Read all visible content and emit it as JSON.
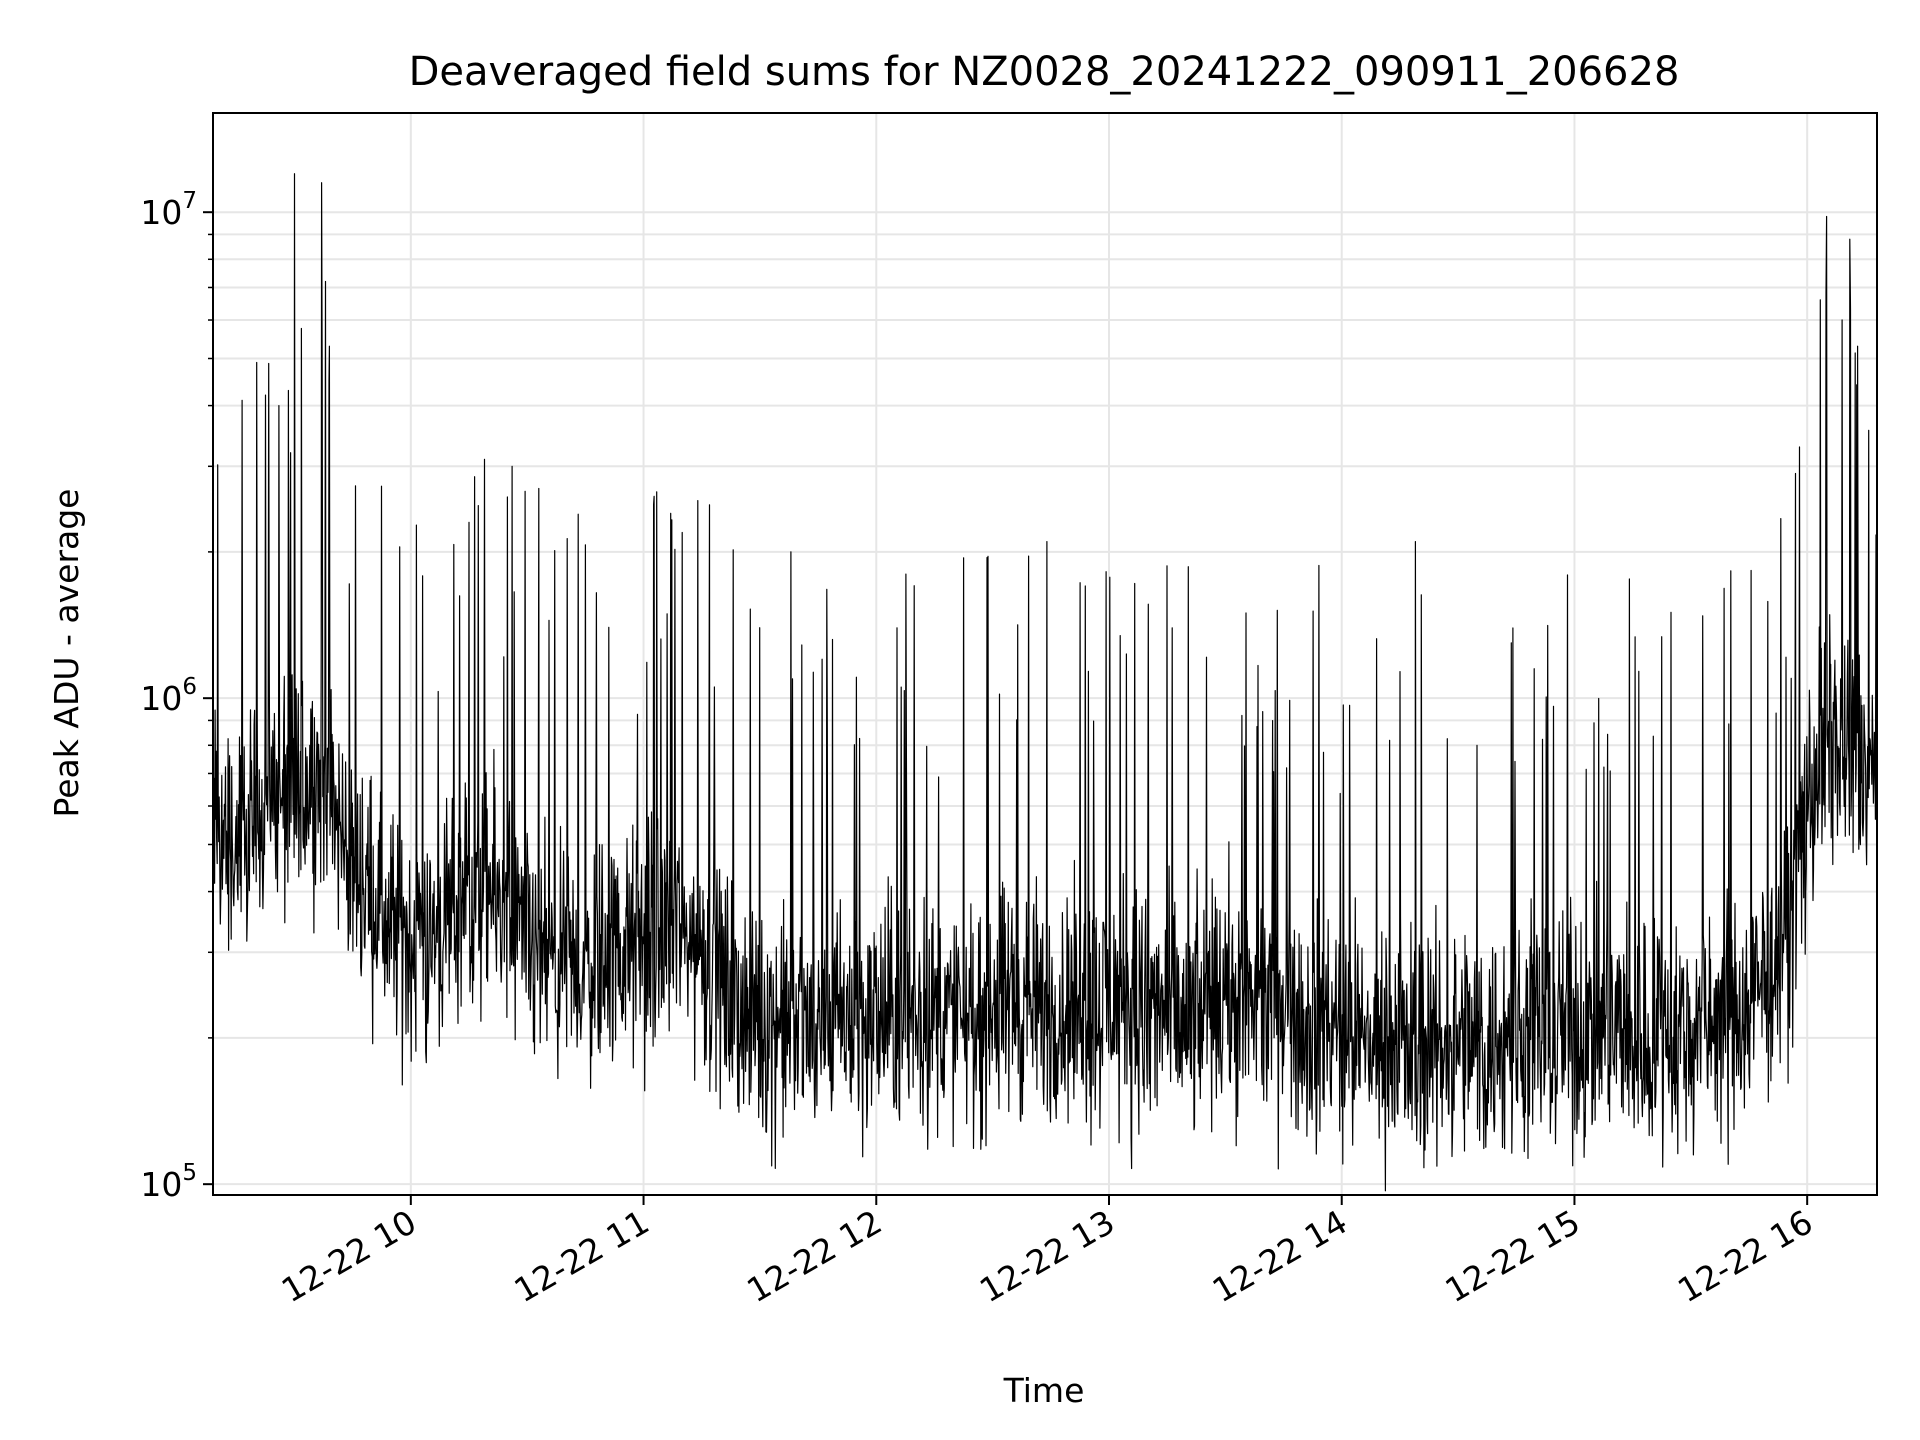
{
  "chart_data": {
    "type": "line",
    "title": "Deaveraged field sums for NZ0028_20241222_090911_206628",
    "xlabel": "Time",
    "ylabel": "Peak ADU - average",
    "y_scale": "log",
    "ylim": [
      95000,
      16000000
    ],
    "xlim": [
      "2024-12-22 09:09",
      "2024-12-22 16:18"
    ],
    "grid": true,
    "line_color": "#000000",
    "grid_color": "#e6e6e6",
    "x_ticks": [
      {
        "value": "2024-12-22 10:00",
        "label": "12-22 10"
      },
      {
        "value": "2024-12-22 11:00",
        "label": "12-22 11"
      },
      {
        "value": "2024-12-22 12:00",
        "label": "12-22 12"
      },
      {
        "value": "2024-12-22 13:00",
        "label": "12-22 13"
      },
      {
        "value": "2024-12-22 14:00",
        "label": "12-22 14"
      },
      {
        "value": "2024-12-22 15:00",
        "label": "12-22 15"
      },
      {
        "value": "2024-12-22 16:00",
        "label": "12-22 16"
      }
    ],
    "y_ticks": [
      {
        "value": 100000,
        "base": "10",
        "exp": "5"
      },
      {
        "value": 1000000,
        "base": "10",
        "exp": "6"
      },
      {
        "value": 10000000,
        "base": "10",
        "exp": "7"
      }
    ],
    "series": [
      {
        "x": [
          "2024-12-22 09:09",
          "2024-12-22 09:12",
          "2024-12-22 09:15",
          "2024-12-22 09:18",
          "2024-12-22 09:21",
          "2024-12-22 09:24",
          "2024-12-22 09:27",
          "2024-12-22 09:30",
          "2024-12-22 09:33",
          "2024-12-22 09:36",
          "2024-12-22 09:39",
          "2024-12-22 09:42",
          "2024-12-22 09:45",
          "2024-12-22 09:48",
          "2024-12-22 09:51",
          "2024-12-22 09:54",
          "2024-12-22 09:57",
          "2024-12-22 10:00",
          "2024-12-22 10:05",
          "2024-12-22 10:10",
          "2024-12-22 10:15",
          "2024-12-22 10:20",
          "2024-12-22 10:25",
          "2024-12-22 10:30",
          "2024-12-22 10:35",
          "2024-12-22 10:40",
          "2024-12-22 10:45",
          "2024-12-22 10:50",
          "2024-12-22 10:55",
          "2024-12-22 11:00",
          "2024-12-22 11:05",
          "2024-12-22 11:10",
          "2024-12-22 11:15",
          "2024-12-22 11:20",
          "2024-12-22 11:25",
          "2024-12-22 11:30",
          "2024-12-22 11:35",
          "2024-12-22 11:40",
          "2024-12-22 11:45",
          "2024-12-22 11:50",
          "2024-12-22 11:55",
          "2024-12-22 12:00",
          "2024-12-22 12:10",
          "2024-12-22 12:20",
          "2024-12-22 12:30",
          "2024-12-22 12:40",
          "2024-12-22 12:50",
          "2024-12-22 13:00",
          "2024-12-22 13:10",
          "2024-12-22 13:20",
          "2024-12-22 13:30",
          "2024-12-22 13:40",
          "2024-12-22 13:50",
          "2024-12-22 14:00",
          "2024-12-22 14:10",
          "2024-12-22 14:20",
          "2024-12-22 14:30",
          "2024-12-22 14:40",
          "2024-12-22 14:50",
          "2024-12-22 15:00",
          "2024-12-22 15:10",
          "2024-12-22 15:20",
          "2024-12-22 15:30",
          "2024-12-22 15:40",
          "2024-12-22 15:45",
          "2024-12-22 15:50",
          "2024-12-22 15:55",
          "2024-12-22 16:00",
          "2024-12-22 16:03",
          "2024-12-22 16:06",
          "2024-12-22 16:09",
          "2024-12-22 16:12",
          "2024-12-22 16:15",
          "2024-12-22 16:18"
        ],
        "baseline": [
          550000,
          520000,
          480000,
          500000,
          600000,
          620000,
          580000,
          650000,
          700000,
          680000,
          600000,
          520000,
          480000,
          420000,
          380000,
          350000,
          330000,
          320000,
          310000,
          330000,
          380000,
          400000,
          350000,
          300000,
          280000,
          270000,
          280000,
          300000,
          300000,
          310000,
          330000,
          330000,
          300000,
          260000,
          230000,
          220000,
          215000,
          210000,
          210000,
          215000,
          215000,
          220000,
          225000,
          220000,
          225000,
          230000,
          230000,
          235000,
          225000,
          210000,
          240000,
          230000,
          220000,
          205000,
          195000,
          190000,
          190000,
          195000,
          200000,
          205000,
          205000,
          200000,
          205000,
          215000,
          230000,
          260000,
          330000,
          550000,
          750000,
          800000,
          780000,
          760000,
          720000,
          700000
        ],
        "peaks": [
          {
            "x": "2024-12-22 09:26",
            "y": 4000000
          },
          {
            "x": "2024-12-22 09:29",
            "y": 3200000
          },
          {
            "x": "2024-12-22 09:30",
            "y": 12000000
          },
          {
            "x": "2024-12-22 09:37",
            "y": 11500000
          },
          {
            "x": "2024-12-22 09:38",
            "y": 7200000
          },
          {
            "x": "2024-12-22 09:39",
            "y": 5300000
          },
          {
            "x": "2024-12-22 10:19",
            "y": 3100000
          },
          {
            "x": "2024-12-22 10:15",
            "y": 2300000
          },
          {
            "x": "2024-12-22 10:33",
            "y": 2700000
          },
          {
            "x": "2024-12-22 11:07",
            "y": 2400000
          },
          {
            "x": "2024-12-22 11:14",
            "y": 2550000
          },
          {
            "x": "2024-12-22 11:17",
            "y": 2500000
          },
          {
            "x": "2024-12-22 11:38",
            "y": 2000000
          },
          {
            "x": "2024-12-22 12:44",
            "y": 2100000
          },
          {
            "x": "2024-12-22 14:19",
            "y": 2100000
          },
          {
            "x": "2024-12-22 16:05",
            "y": 9800000
          },
          {
            "x": "2024-12-22 16:11",
            "y": 8800000
          },
          {
            "x": "2024-12-22 16:09",
            "y": 6000000
          },
          {
            "x": "2024-12-22 16:13",
            "y": 5300000
          },
          {
            "x": "2024-12-22 15:57",
            "y": 2900000
          }
        ]
      }
    ]
  }
}
